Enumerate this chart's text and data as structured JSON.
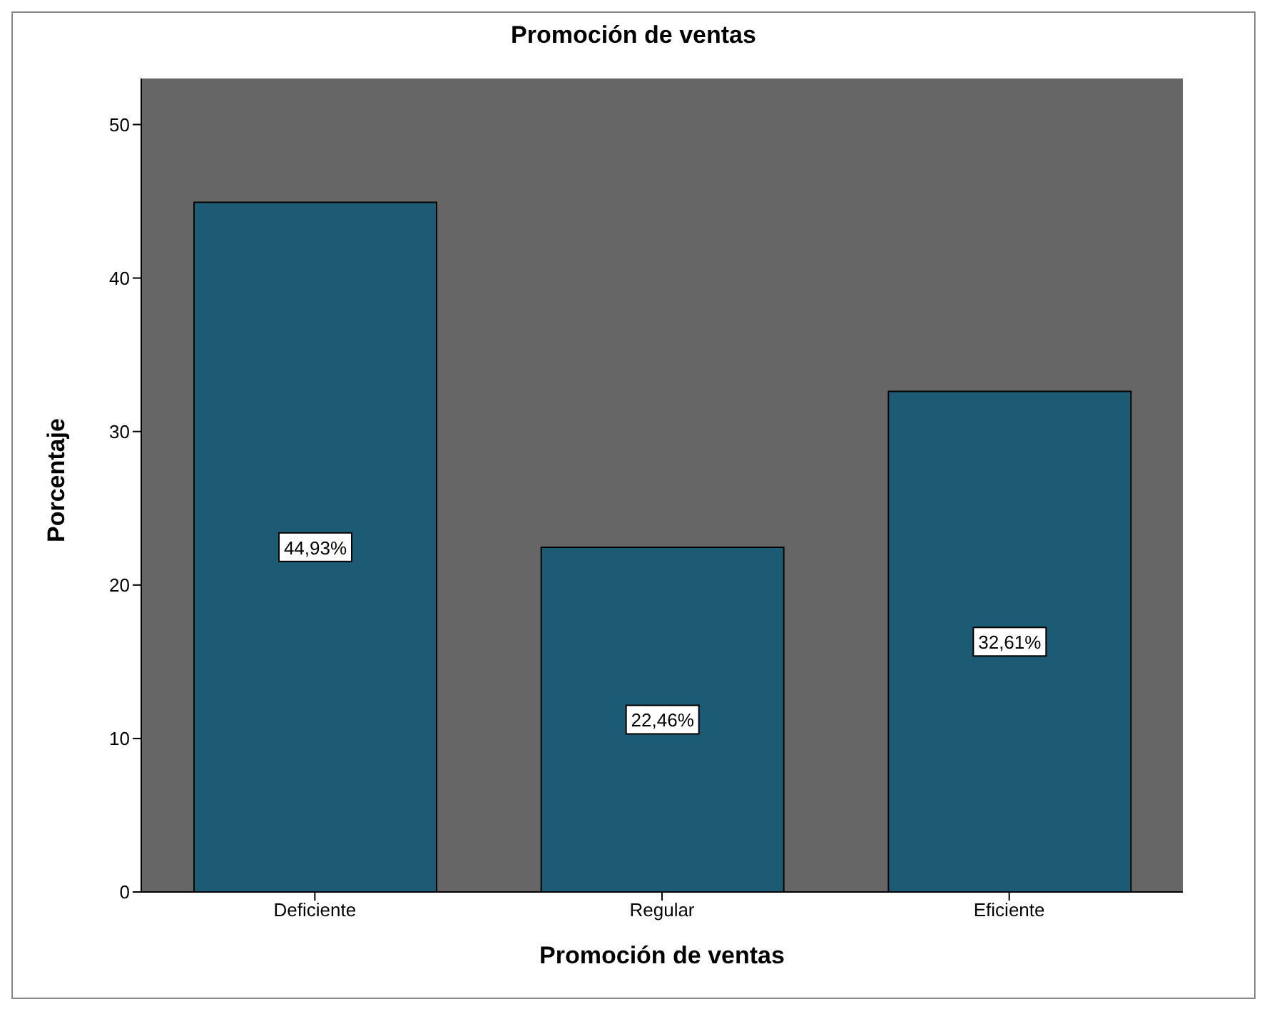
{
  "chart_data": {
    "type": "bar",
    "title": "Promoción de ventas",
    "xlabel": "Promoción de ventas",
    "ylabel": "Porcentaje",
    "categories": [
      "Deficiente",
      "Regular",
      "Eficiente"
    ],
    "values": [
      44.93,
      22.46,
      32.61
    ],
    "value_labels": [
      "44,93%",
      "22,46%",
      "32,61%"
    ],
    "color": "#1d5b74",
    "ylim": [
      0,
      53
    ],
    "yticks": [
      0,
      10,
      20,
      30,
      40,
      50
    ],
    "grid": false,
    "legend": false
  }
}
